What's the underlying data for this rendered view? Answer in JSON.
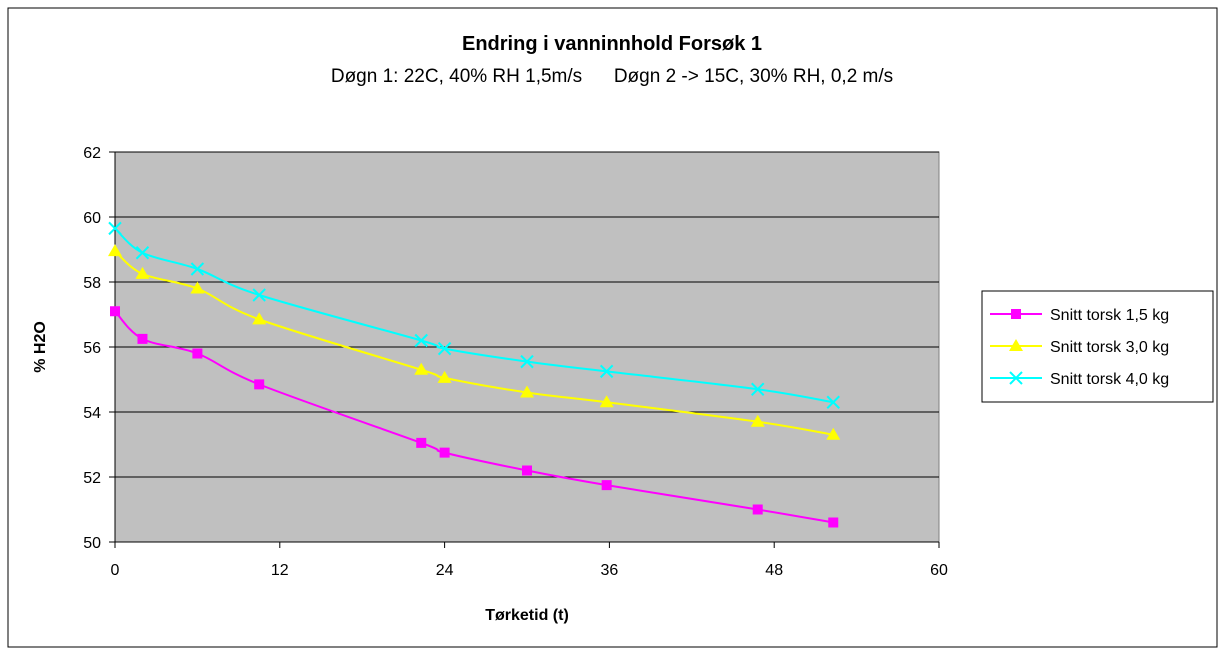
{
  "chart_data": {
    "type": "line",
    "title": "Endring i vanninnhold Forsøk 1",
    "subtitle": "Døgn 1: 22C, 40% RH 1,5m/s      Døgn 2 -> 15C, 30% RH, 0,2 m/s",
    "xlabel": "Tørketid (t)",
    "ylabel": "% H2O",
    "xlim": [
      0,
      60
    ],
    "ylim": [
      50,
      62
    ],
    "xticks": [
      "0",
      "12",
      "24",
      "36",
      "48",
      "60"
    ],
    "yticks": [
      "50",
      "52",
      "54",
      "56",
      "58",
      "60",
      "62"
    ],
    "grid": "horizontal",
    "legend_position": "right",
    "plot_background": "#c0c0c0",
    "series": [
      {
        "name": "Snitt torsk 1,5 kg",
        "color": "#ff00ff",
        "marker": "square",
        "x": [
          0,
          2,
          6,
          10.5,
          22.3,
          24,
          30,
          35.8,
          46.8,
          52.3
        ],
        "y": [
          57.1,
          56.25,
          55.8,
          54.85,
          53.05,
          52.75,
          52.2,
          51.75,
          51.0,
          50.6
        ]
      },
      {
        "name": "Snitt torsk 3,0 kg",
        "color": "#ffff00",
        "marker": "triangle",
        "x": [
          0,
          2,
          6,
          10.5,
          22.3,
          24,
          30,
          35.8,
          46.8,
          52.3
        ],
        "y": [
          58.95,
          58.25,
          57.8,
          56.85,
          55.3,
          55.05,
          54.6,
          54.3,
          53.7,
          53.3
        ]
      },
      {
        "name": "Snitt torsk 4,0 kg",
        "color": "#00ffff",
        "marker": "x",
        "x": [
          0,
          2,
          6,
          10.5,
          22.3,
          24,
          30,
          35.8,
          46.8,
          52.3
        ],
        "y": [
          59.65,
          58.9,
          58.4,
          57.6,
          56.2,
          55.95,
          55.55,
          55.25,
          54.7,
          54.3
        ]
      }
    ]
  }
}
